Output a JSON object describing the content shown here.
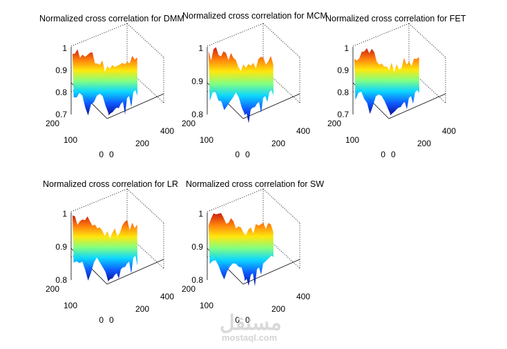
{
  "chart_data": [
    {
      "type": "surface3d",
      "title": "Normalized cross correlation for DMM",
      "zticks": [
        "1",
        "0.9",
        "0.8",
        "0.7"
      ],
      "zlim": [
        0.7,
        1.0
      ],
      "yticks": [
        "200",
        "100",
        "0"
      ],
      "xticks": [
        "0",
        "200",
        "400"
      ],
      "colormap": "jet",
      "grid": true
    },
    {
      "type": "surface3d",
      "title": "Normalized cross correlation for MCM",
      "zticks": [
        "1",
        "0.9",
        "0.8"
      ],
      "zlim": [
        0.8,
        1.0
      ],
      "yticks": [
        "200",
        "100",
        "0"
      ],
      "xticks": [
        "0",
        "200",
        "400"
      ],
      "colormap": "jet",
      "grid": true
    },
    {
      "type": "surface3d",
      "title": "Normalized cross correlation for FET",
      "zticks": [
        "1",
        "0.9",
        "0.8",
        "0.7"
      ],
      "zlim": [
        0.7,
        1.0
      ],
      "yticks": [
        "200",
        "100",
        "0"
      ],
      "xticks": [
        "0",
        "200",
        "400"
      ],
      "colormap": "jet",
      "grid": true
    },
    {
      "type": "surface3d",
      "title": "Normalized cross correlation for LR",
      "zticks": [
        "1",
        "0.9",
        "0.8"
      ],
      "zlim": [
        0.8,
        1.0
      ],
      "yticks": [
        "200",
        "100",
        "0"
      ],
      "xticks": [
        "0",
        "200",
        "400"
      ],
      "colormap": "jet",
      "grid": true
    },
    {
      "type": "surface3d",
      "title": "Normalized cross correlation for SW",
      "zticks": [
        "1",
        "0.9",
        "0.8"
      ],
      "zlim": [
        0.8,
        1.0
      ],
      "yticks": [
        "200",
        "100",
        "0"
      ],
      "xticks": [
        "0",
        "200",
        "400"
      ],
      "colormap": "jet",
      "grid": true
    }
  ],
  "watermark": {
    "arabic": "مستقل",
    "latin": "mostaql.com"
  }
}
